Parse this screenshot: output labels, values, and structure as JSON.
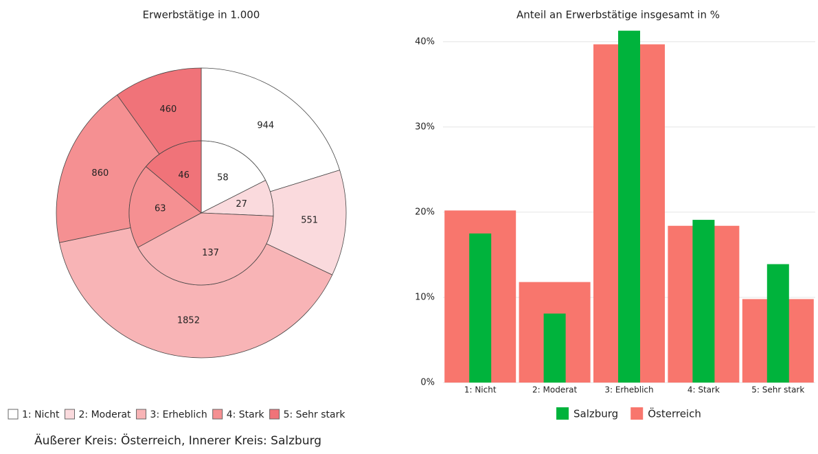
{
  "chart_data": [
    {
      "type": "pie",
      "title": "Erwerbstätige in 1.000",
      "categories": [
        "1: Nicht",
        "2: Moderat",
        "3: Erheblich",
        "4: Stark",
        "5: Sehr stark"
      ],
      "colors": [
        "#ffffff",
        "#fadadd",
        "#f8b4b6",
        "#f59092",
        "#f07379"
      ],
      "series": [
        {
          "values": [
            944,
            551,
            1852,
            860,
            460
          ]
        },
        {
          "values": [
            58,
            27,
            137,
            63,
            46
          ]
        }
      ],
      "note": "Äußerer Kreis: Österreich, Innerer Kreis: Salzburg"
    },
    {
      "type": "bar",
      "title": "Anteil an Erwerbstätige insgesamt in %",
      "categories": [
        "1: Nicht",
        "2: Moderat",
        "3: Erheblich",
        "4: Stark",
        "5: Sehr stark"
      ],
      "series": [
        {
          "name": "Salzburg",
          "color": "#00b33c",
          "values": [
            17.5,
            8.1,
            41.3,
            19.1,
            13.9
          ]
        },
        {
          "name": "Österreich",
          "color": "#f8766d",
          "values": [
            20.2,
            11.8,
            39.7,
            18.4,
            9.8
          ]
        }
      ],
      "ylim": [
        0,
        42
      ],
      "yticks": [
        {
          "value": 0,
          "label": "0%"
        },
        {
          "value": 10,
          "label": "10%"
        },
        {
          "value": 20,
          "label": "20%"
        },
        {
          "value": 30,
          "label": "30%"
        },
        {
          "value": 40,
          "label": "40%"
        }
      ],
      "grid": true
    }
  ]
}
